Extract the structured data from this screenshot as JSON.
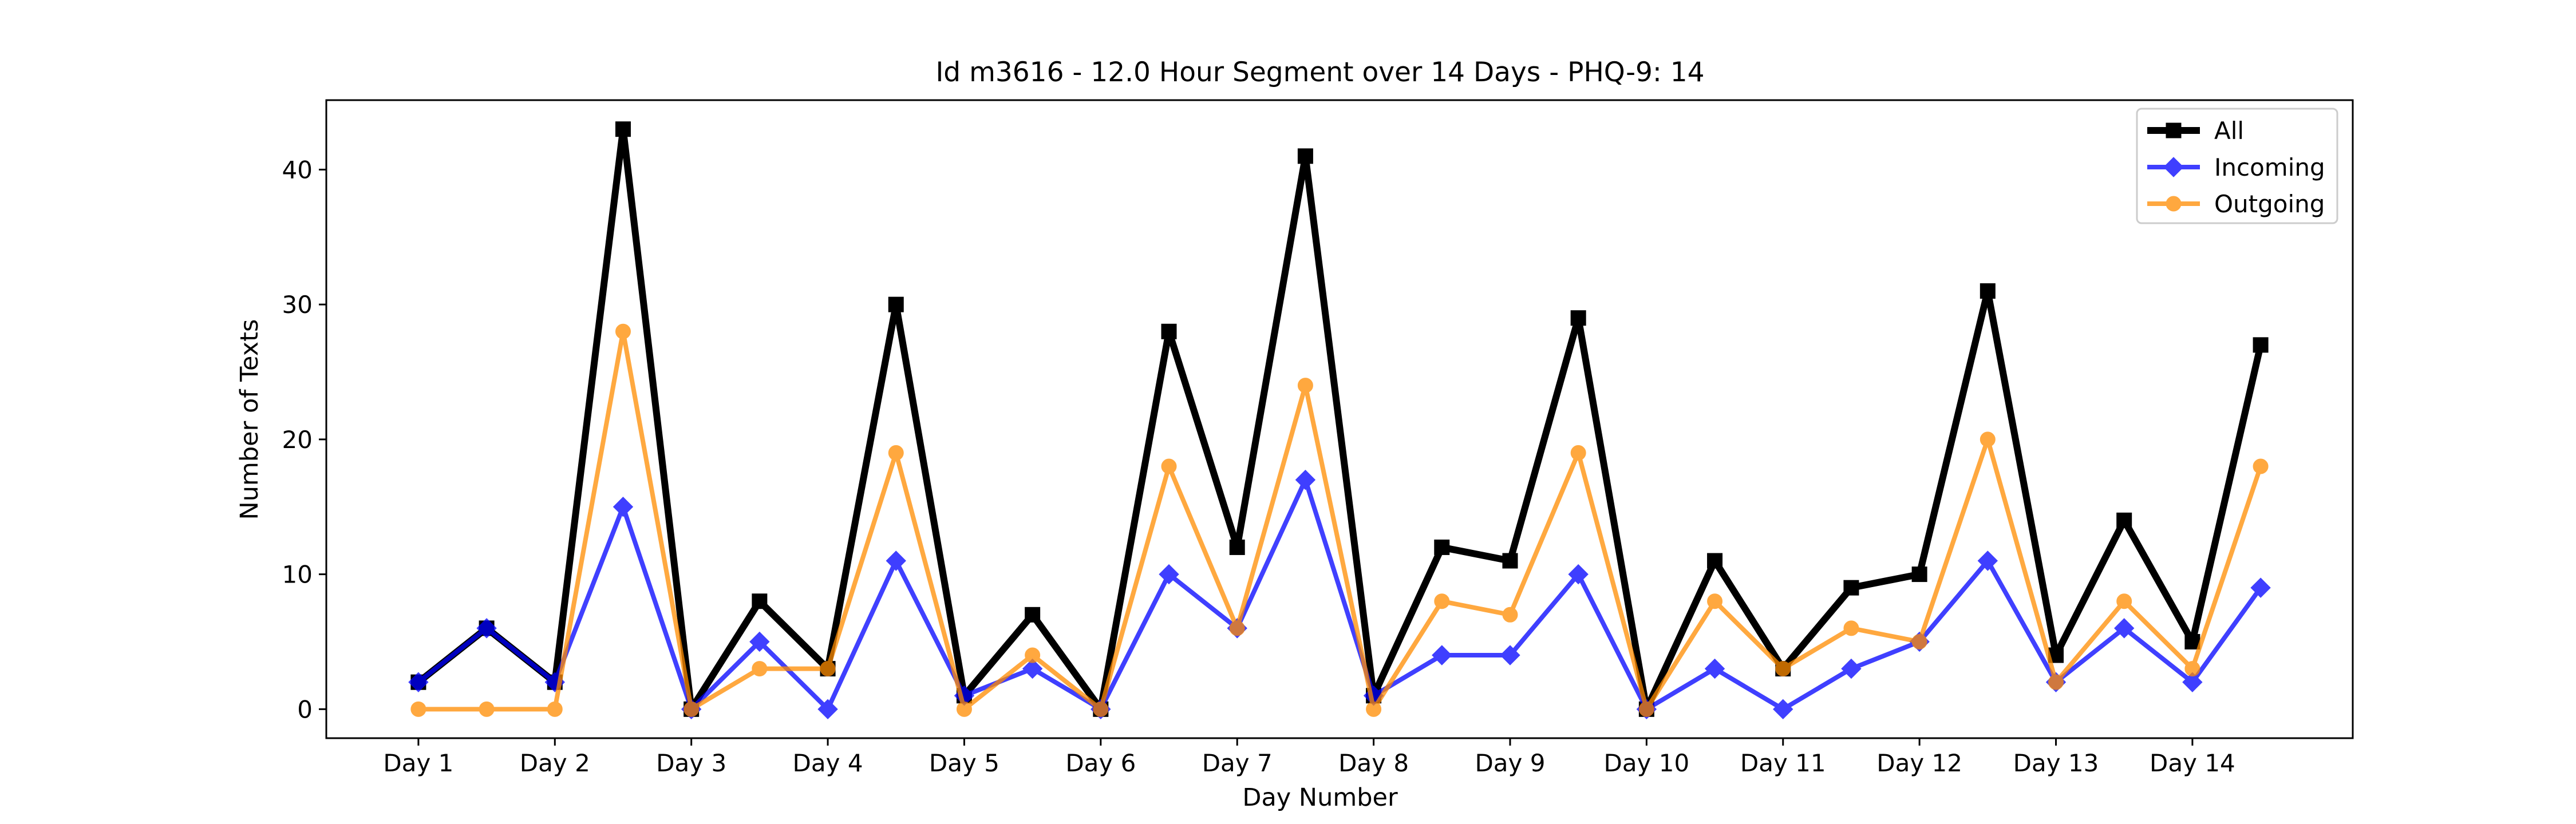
{
  "chart_data": {
    "type": "line",
    "title": "Id m3616 - 12.0 Hour Segment over 14 Days - PHQ-9: 14",
    "xlabel": "Day Number",
    "ylabel": "Number of Texts",
    "xticks": [
      "Day 1",
      "Day 2",
      "Day 3",
      "Day 4",
      "Day 5",
      "Day 6",
      "Day 7",
      "Day 8",
      "Day 9",
      "Day 10",
      "Day 11",
      "Day 12",
      "Day 13",
      "Day 14"
    ],
    "yticks": [
      0,
      10,
      20,
      30,
      40
    ],
    "ylim": [
      -2.15,
      45.15
    ],
    "grid": false,
    "legend_position": "upper right",
    "x": [
      1,
      1.5,
      2,
      2.5,
      3,
      3.5,
      4,
      4.5,
      5,
      5.5,
      6,
      6.5,
      7,
      7.5,
      8,
      8.5,
      9,
      9.5,
      10,
      10.5,
      11,
      11.5,
      12,
      12.5,
      13,
      13.5,
      14,
      14.5
    ],
    "xlim": [
      0.325,
      15.175
    ],
    "series": [
      {
        "name": "All",
        "color": "#000000",
        "marker": "square",
        "values": [
          2,
          6,
          2,
          43,
          0,
          8,
          3,
          30,
          1,
          7,
          0,
          28,
          12,
          41,
          1,
          12,
          11,
          29,
          0,
          11,
          3,
          9,
          10,
          31,
          4,
          14,
          5,
          27
        ]
      },
      {
        "name": "Incoming",
        "color": "#0000ff",
        "marker": "diamond",
        "values": [
          2,
          6,
          2,
          15,
          0,
          5,
          0,
          11,
          1,
          3,
          0,
          10,
          6,
          17,
          1,
          4,
          4,
          10,
          0,
          3,
          0,
          3,
          5,
          11,
          2,
          6,
          2,
          9
        ]
      },
      {
        "name": "Outgoing",
        "color": "#ff8c00",
        "marker": "circle",
        "values": [
          0,
          0,
          0,
          28,
          0,
          3,
          3,
          19,
          0,
          4,
          0,
          18,
          6,
          24,
          0,
          8,
          7,
          19,
          0,
          8,
          3,
          6,
          5,
          20,
          2,
          8,
          3,
          18
        ]
      }
    ]
  }
}
